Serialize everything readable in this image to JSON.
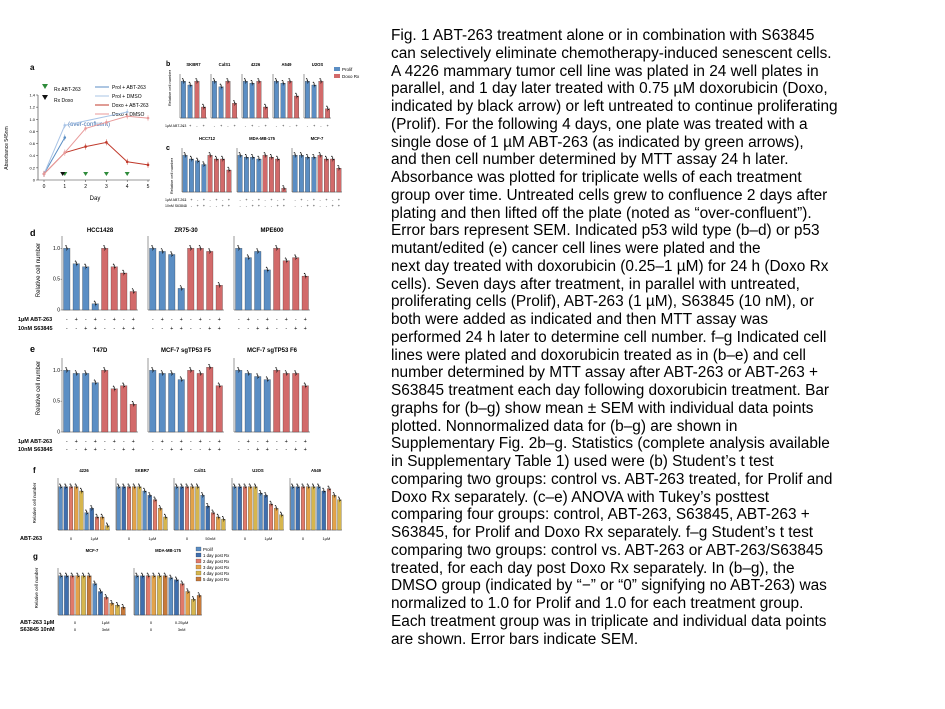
{
  "caption": {
    "lines": [
      "Fig. 1 ABT-263 treatment alone or in combination with S63845",
      "can selectively eliminate chemotherapy-induced senescent cells.",
      "A 4226 mammary tumor cell line was plated in 24 well plates in",
      "parallel, and 1 day later treated with 0.75 µM doxorubicin (Doxo,",
      "indicated by black arrow) or left untreated to continue proliferating",
      "(Prolif). For the following 4 days, one plate was treated with a",
      "single dose of 1 µM ABT-263 (as indicated by green arrows),",
      "and then cell number determined by MTT assay 24 h later.",
      "Absorbance was plotted for triplicate wells of each treatment",
      "group over time. Untreated cells grew to confluence 2 days after",
      "plating and then lifted off the plate (noted as “over-confluent”).",
      "Error bars represent SEM. Indicated p53 wild type (b–d) or p53",
      "mutant/edited (e) cancer cell lines were plated and the",
      "next day treated with doxorubicin (0.25–1 µM) for 24 h (Doxo Rx",
      "cells). Seven days after treatment, in parallel with untreated,",
      "proliferating cells (Prolif), ABT-263 (1 µM), S63845 (10 nM), or",
      "both were added as indicated and then MTT assay was",
      "performed 24 h later to determine cell number. f–g Indicated cell",
      "lines were plated and doxorubicin treated as in (b–e) and cell",
      "number determined by MTT assay after ABT-263 or ABT-263 +",
      "S63845 treatment each day following doxorubicin treatment. Bar",
      "graphs for (b–g) show mean ± SEM with individual data points",
      "plotted. Nonnormalized data for (b–g) are shown in",
      "Supplementary Fig. 2b–g. Statistics (complete analysis available",
      "in Supplementary Table 1) used were (b) Student’s t test",
      "comparing two groups: control vs. ABT-263 treated, for Prolif and",
      "Doxo Rx separately. (c–e) ANOVA with Tukey’s posttest",
      "comparing four groups: control, ABT-263, S63845, ABT-263 +",
      "S63845, for Prolif and Doxo Rx separately. f–g Student’s t test",
      "comparing two groups: control vs. ABT-263 or ABT-263/S63845",
      "treated, for each day post Doxo Rx separately. In (b–g), the",
      "DMSO group (indicated by “−” or “0” signifying no ABT-263) was",
      "normalized to 1.0 for Prolif and 1.0 for each treatment group.",
      "Each treatment group was in triplicate and individual data points",
      "are shown. Error bars indicate SEM."
    ]
  },
  "colors": {
    "blue": "#5b8ec4",
    "red": "#d26a6a",
    "day1": "#3f6fae",
    "day2": "#e07a6a",
    "day3": "#e3a34a",
    "day4": "#d6b64e",
    "day5": "#c87a3a",
    "axis": "#333333"
  },
  "panel_a": {
    "letter": "a",
    "legend": {
      "rx_abt": "Rx ABT-263",
      "rx_doxo": "Rx Doxo",
      "prolif_abt": "Prol + ABT-263",
      "prolif_dmso": "Prol + DMSO",
      "doxo_abt": "Doxo + ABT-263",
      "doxo_dmso": "Doxo + DMSO"
    },
    "ylabel": "Absorbance 545nm",
    "xlabel": "Day",
    "xticks": [
      "0",
      "1",
      "2",
      "3",
      "4",
      "5"
    ],
    "yticks": [
      "0",
      "0.2",
      "0.4",
      "0.6",
      "0.8",
      "1.0",
      "1.2",
      "1.4"
    ],
    "annotation": "(over-confluent)"
  },
  "panel_b": {
    "letter": "b",
    "cells": [
      "SKBR7",
      "CalS1",
      "4226",
      "A549",
      "U2OS"
    ],
    "ylabel": "Relative cell number",
    "legend": [
      "Prolif",
      "Doxo Rx"
    ],
    "row_label": "1µM ABT-263",
    "signs": [
      "-",
      "+",
      "-",
      "+"
    ]
  },
  "panel_c": {
    "letter": "c",
    "cells": [
      "HCC712",
      "MDA-MB-175",
      "MCF-7"
    ],
    "ylabel": "Relative cell number",
    "row1": "1µM ABT-263",
    "row2": "10nM S63845",
    "signs1": [
      "-",
      "+",
      "-",
      "+",
      "-",
      "+",
      "-",
      "+"
    ],
    "signs2": [
      "-",
      "-",
      "+",
      "+",
      "-",
      "-",
      "+",
      "+"
    ]
  },
  "panel_d": {
    "letter": "d",
    "cells": [
      "HCC1428",
      "ZR75-30",
      "MPE600"
    ],
    "ylabel": "Relative cell number",
    "yticks": [
      "0",
      "0.5",
      "1.0"
    ],
    "row1": "1µM ABT-263",
    "row2": "10nM S63845",
    "signs1": [
      "-",
      "+",
      "-",
      "+",
      "-",
      "+",
      "-",
      "+"
    ],
    "signs2": [
      "-",
      "-",
      "+",
      "+",
      "-",
      "-",
      "+",
      "+"
    ]
  },
  "panel_e": {
    "letter": "e",
    "cells": [
      "T47D",
      "MCF-7 sgTP53 F5",
      "MCF-7 sgTP53 F6"
    ],
    "ylabel": "Relative cell number",
    "yticks": [
      "0",
      "0.5",
      "1.0"
    ],
    "row1": "1µM ABT-263",
    "row2": "10nM S63845",
    "signs1": [
      "-",
      "+",
      "-",
      "+",
      "-",
      "+",
      "-",
      "+"
    ],
    "signs2": [
      "-",
      "-",
      "+",
      "+",
      "-",
      "-",
      "+",
      "+"
    ]
  },
  "panel_f": {
    "letter": "f",
    "cells": [
      "4226",
      "SKBR7",
      "CalS1",
      "U2OS",
      "A549"
    ],
    "ylabel": "Relative cell number",
    "row_label": "ABT-263",
    "doses": [
      [
        "0",
        "1µM"
      ],
      [
        "0",
        "1µM"
      ],
      [
        "0",
        "50nM"
      ],
      [
        "0",
        "1µM"
      ],
      [
        "0",
        "1µM"
      ]
    ]
  },
  "panel_g": {
    "letter": "g",
    "cells": [
      "MCF-7",
      "MDA-MB-175"
    ],
    "ylabel": "Relative cell number",
    "row1": "ABT-263 1µM",
    "row2": "S63845 10nM",
    "doses1": [
      "0",
      "1µM",
      "0",
      "0.25µM"
    ],
    "doses2": [
      "0",
      "3nM",
      "0",
      "3nM"
    ],
    "legend": [
      "Prolif",
      "1 day post Rx",
      "2 day post Rx",
      "3 day post Rx",
      "4 day post Rx",
      "5 day post Rx"
    ]
  },
  "chart_data": [
    {
      "type": "line",
      "panel": "a",
      "title": "",
      "xlabel": "Day",
      "ylabel": "Absorbance 545nm",
      "x": [
        0,
        1,
        2,
        3,
        4,
        5
      ],
      "ylim": [
        0,
        1.4
      ],
      "series": [
        {
          "name": "Prol + ABT-263",
          "x": [
            0,
            1
          ],
          "values": [
            0.1,
            0.7
          ]
        },
        {
          "name": "Prol + DMSO",
          "x": [
            0,
            1,
            4
          ],
          "values": [
            0.1,
            0.9,
            1.12
          ]
        },
        {
          "name": "Doxo + ABT-263",
          "x": [
            0,
            1,
            2,
            3,
            4,
            5
          ],
          "values": [
            0.1,
            0.45,
            0.55,
            0.62,
            0.3,
            0.25
          ]
        },
        {
          "name": "Doxo + DMSO",
          "x": [
            0,
            1,
            2,
            3,
            4,
            5
          ],
          "values": [
            0.1,
            0.45,
            0.85,
            0.95,
            1.05,
            1.02
          ]
        }
      ]
    },
    {
      "type": "bar",
      "panel": "b",
      "ylabel": "Relative cell number",
      "ylim": [
        0,
        1.2
      ],
      "groups": [
        {
          "cell": "SKBR7",
          "values": [
            1.0,
            0.9,
            1.0,
            0.3
          ]
        },
        {
          "cell": "CalS1",
          "values": [
            1.0,
            0.85,
            1.0,
            0.4
          ]
        },
        {
          "cell": "4226",
          "values": [
            1.0,
            0.95,
            1.0,
            0.3
          ]
        },
        {
          "cell": "A549",
          "values": [
            1.0,
            0.95,
            1.0,
            0.6
          ]
        },
        {
          "cell": "U2OS",
          "values": [
            1.0,
            0.9,
            1.0,
            0.25
          ]
        }
      ]
    },
    {
      "type": "bar",
      "panel": "c",
      "ylabel": "Relative cell number",
      "ylim": [
        0,
        1.2
      ],
      "groups": [
        {
          "cell": "HCC712",
          "values": [
            1.0,
            0.9,
            0.85,
            0.75,
            1.0,
            0.9,
            0.9,
            0.6
          ]
        },
        {
          "cell": "MDA-MB-175",
          "values": [
            1.0,
            0.95,
            0.95,
            0.9,
            1.0,
            0.95,
            0.9,
            0.1
          ]
        },
        {
          "cell": "MCF-7",
          "values": [
            1.0,
            1.0,
            0.95,
            0.95,
            1.0,
            0.9,
            0.9,
            0.65
          ]
        }
      ]
    },
    {
      "type": "bar",
      "panel": "d",
      "ylabel": "Relative cell number",
      "ylim": [
        0,
        1.2
      ],
      "groups": [
        {
          "cell": "HCC1428",
          "values": [
            1.0,
            0.75,
            0.7,
            0.1,
            1.0,
            0.7,
            0.6,
            0.3
          ]
        },
        {
          "cell": "ZR75-30",
          "values": [
            1.0,
            0.95,
            0.9,
            0.35,
            1.0,
            1.0,
            0.95,
            0.4
          ]
        },
        {
          "cell": "MPE600",
          "values": [
            1.0,
            0.85,
            0.95,
            0.65,
            1.0,
            0.8,
            0.85,
            0.55
          ]
        }
      ]
    },
    {
      "type": "bar",
      "panel": "e",
      "ylabel": "Relative cell number",
      "ylim": [
        0,
        1.2
      ],
      "groups": [
        {
          "cell": "T47D",
          "values": [
            1.0,
            0.95,
            0.95,
            0.8,
            1.0,
            0.7,
            0.75,
            0.45
          ]
        },
        {
          "cell": "MCF-7 sgTP53 F5",
          "values": [
            1.0,
            0.95,
            0.95,
            0.85,
            1.0,
            0.95,
            1.05,
            0.75
          ]
        },
        {
          "cell": "MCF-7 sgTP53 F6",
          "values": [
            1.0,
            0.95,
            0.9,
            0.85,
            1.0,
            0.95,
            0.95,
            0.75
          ]
        }
      ]
    },
    {
      "type": "bar",
      "panel": "f",
      "ylabel": "Relative cell number",
      "ylim": [
        0,
        1.2
      ],
      "groups": [
        {
          "cell": "4226",
          "values": [
            1.0,
            1.0,
            1.0,
            1.0,
            0.9,
            0.4,
            0.5,
            0.3,
            0.3,
            0.1
          ]
        },
        {
          "cell": "SKBR7",
          "values": [
            1.0,
            1.0,
            1.0,
            1.0,
            1.0,
            0.9,
            0.8,
            0.7,
            0.5,
            0.3
          ]
        },
        {
          "cell": "CalS1",
          "values": [
            1.0,
            1.0,
            1.0,
            1.0,
            1.0,
            0.8,
            0.55,
            0.4,
            0.3,
            0.25
          ]
        },
        {
          "cell": "U2OS",
          "values": [
            1.0,
            1.0,
            1.0,
            1.0,
            1.0,
            0.85,
            0.8,
            0.6,
            0.5,
            0.35
          ]
        },
        {
          "cell": "A549",
          "values": [
            1.0,
            1.0,
            1.0,
            1.0,
            1.0,
            1.0,
            0.9,
            0.95,
            0.8,
            0.7
          ]
        }
      ]
    },
    {
      "type": "bar",
      "panel": "g",
      "ylabel": "Relative cell number",
      "ylim": [
        0,
        1.2
      ],
      "groups": [
        {
          "cell": "MCF-7",
          "values": [
            1.0,
            1.0,
            1.0,
            1.0,
            1.0,
            1.0,
            0.8,
            0.6,
            0.45,
            0.3,
            0.25,
            0.2
          ]
        },
        {
          "cell": "MDA-MB-175",
          "values": [
            1.0,
            1.0,
            1.0,
            1.0,
            1.0,
            1.0,
            0.95,
            0.9,
            0.8,
            0.6,
            0.4,
            0.5
          ]
        }
      ]
    }
  ]
}
